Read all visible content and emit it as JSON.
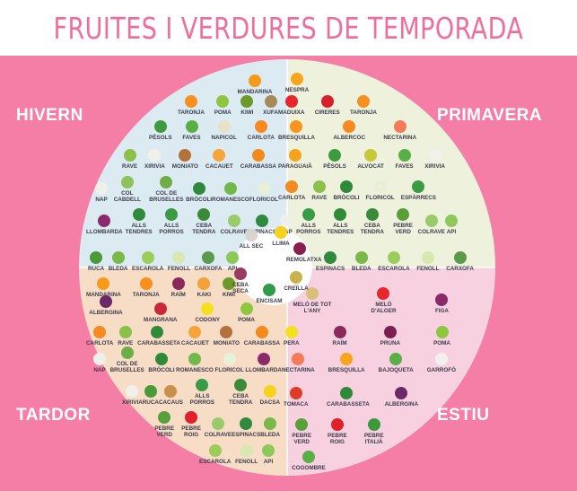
{
  "title": "FRUITES I VERDURES DE TEMPORADA",
  "seasons": {
    "winter": "HIVERN",
    "spring": "PRIMAVERA",
    "autumn": "TARDOR",
    "summer": "ESTIU"
  },
  "colors": {
    "background": "#f47ea6",
    "title": "#f06e9c",
    "winter": "#dcebf2",
    "spring": "#eef1dc",
    "autumn": "#f7dcc6",
    "summer": "#f8d1e1"
  },
  "center": [
    {
      "name": "ALL SEC",
      "color": "#d8d4d0"
    },
    {
      "name": "LLIMA",
      "color": "#f7d21c"
    },
    {
      "name": "REMOLATXA",
      "color": "#8a1f4f"
    },
    {
      "name": "CEBA SECA",
      "color": "#9a3a63"
    },
    {
      "name": "CREÏLLA",
      "color": "#c9b24a"
    },
    {
      "name": "ENCISAM",
      "color": "#2f9a4a"
    }
  ],
  "winter": [
    [
      {
        "name": "MANDARINA",
        "color": "#f59a1b"
      }
    ],
    [
      {
        "name": "TARONJA",
        "color": "#f7901e"
      },
      {
        "name": "POMA",
        "color": "#8ec63f"
      },
      {
        "name": "KIWI",
        "color": "#6b9a2a"
      },
      {
        "name": "XUFA",
        "color": "#a88a5a"
      }
    ],
    [
      {
        "name": "PÈSOLS",
        "color": "#3e9a3f"
      },
      {
        "name": "FAVES",
        "color": "#5aae46"
      },
      {
        "name": "NAPICOL",
        "color": "#e8e0c8"
      },
      {
        "name": "CARLOTA",
        "color": "#f48a21"
      }
    ],
    [
      {
        "name": "RAVE",
        "color": "#8bc04a"
      },
      {
        "name": "XIRIVIA",
        "color": "#f1f1ea"
      },
      {
        "name": "MONIATO",
        "color": "#b3713b"
      },
      {
        "name": "CACAUET",
        "color": "#f5a53a"
      },
      {
        "name": "CARABASSA",
        "color": "#f38a1c"
      }
    ],
    [
      {
        "name": "NAP",
        "color": "#f0f0ea"
      },
      {
        "name": "COL CABDELL",
        "color": "#8dc35a"
      },
      {
        "name": "COL DE BRUSELLES",
        "color": "#6eae46"
      },
      {
        "name": "BRÒCOLI",
        "color": "#2e8a3a"
      },
      {
        "name": "ROMANESCO",
        "color": "#73b84a"
      },
      {
        "name": "FLORICOL",
        "color": "#e9f0d8"
      }
    ],
    [
      {
        "name": "LLOMBARDA",
        "color": "#8a2a6a"
      },
      {
        "name": "ALLS TENDRES",
        "color": "#2f8a3a"
      },
      {
        "name": "ALLS PORROS",
        "color": "#3a9a45"
      },
      {
        "name": "CEBA TENDRA",
        "color": "#3b8a3a"
      },
      {
        "name": "COLRAVE",
        "color": "#9acb6a"
      },
      {
        "name": "ESPINACS",
        "color": "#2f8a40"
      }
    ],
    [
      {
        "name": "RUCA",
        "color": "#4a9a3a"
      },
      {
        "name": "BLEDA",
        "color": "#7ab84a"
      },
      {
        "name": "ESCAROLA",
        "color": "#9ccc5a"
      },
      {
        "name": "FENOLL",
        "color": "#d8e8b0"
      },
      {
        "name": "CARXOFA",
        "color": "#5a9a4a"
      },
      {
        "name": "API",
        "color": "#8cc85a"
      }
    ]
  ],
  "spring": [
    [
      {
        "name": "NESPRA",
        "color": "#f5a51e"
      }
    ],
    [
      {
        "name": "MADUIXA",
        "color": "#e8262d"
      },
      {
        "name": "CIRERES",
        "color": "#d8202a"
      },
      {
        "name": "TARONJA",
        "color": "#f7901e"
      }
    ],
    [
      {
        "name": "BRESQUILLA",
        "color": "#f7951e"
      },
      {
        "name": "ALBERCOC",
        "color": "#f58a20"
      },
      {
        "name": "NECTARINA",
        "color": "#f47a5a"
      }
    ],
    [
      {
        "name": "PARAGUAIÀ",
        "color": "#f5a31e"
      },
      {
        "name": "PÈSOLS",
        "color": "#3e9a3f"
      },
      {
        "name": "ALVOCAT",
        "color": "#c6c83a"
      },
      {
        "name": "FAVES",
        "color": "#5aae46"
      },
      {
        "name": "XIRIVIA",
        "color": "#f1f1ea"
      }
    ],
    [
      {
        "name": "CARLOTA",
        "color": "#f48a21"
      },
      {
        "name": "RAVE",
        "color": "#8bc04a"
      },
      {
        "name": "BRÒCOLI",
        "color": "#2e8a3a"
      },
      {
        "name": "FLORICOL",
        "color": "#e9f0d8"
      },
      {
        "name": "ESPÀRRECS",
        "color": "#3a9a45"
      }
    ],
    [
      {
        "name": "NAP",
        "color": "#f0f0ea"
      },
      {
        "name": "ALLS PORROS",
        "color": "#3a9a45"
      },
      {
        "name": "ALLS TENDRES",
        "color": "#2f8a3a"
      },
      {
        "name": "CEBA TENDRA",
        "color": "#3b8a3a"
      },
      {
        "name": "PEBRE VERD",
        "color": "#5aa03a"
      },
      {
        "name": "COLRAVE",
        "color": "#9acb6a"
      },
      {
        "name": "API",
        "color": "#8cc85a"
      }
    ],
    [
      {
        "name": "ESPINACS",
        "color": "#2f8a40"
      },
      {
        "name": "BLEDA",
        "color": "#7ab84a"
      },
      {
        "name": "ESCAROLA",
        "color": "#9ccc5a"
      },
      {
        "name": "FENOLL",
        "color": "#d8e8b0"
      },
      {
        "name": "CARXOFA",
        "color": "#5a9a4a"
      }
    ]
  ],
  "autumn": [
    [
      {
        "name": "MANDARINA",
        "color": "#f59a1b"
      },
      {
        "name": "TARONJA",
        "color": "#f7901e"
      },
      {
        "name": "RAÏM",
        "color": "#8a2a5a"
      },
      {
        "name": "KAKI",
        "color": "#f5a03a"
      },
      {
        "name": "KIWI",
        "color": "#6b9a2a"
      }
    ],
    [
      {
        "name": "ALBERGINA",
        "color": "#6a2a6a"
      }
    ],
    [
      {
        "name": "MANGRANA",
        "color": "#c8283a"
      },
      {
        "name": "CODONY",
        "color": "#f5e01e"
      },
      {
        "name": "POMA",
        "color": "#8ec63f"
      }
    ],
    [
      {
        "name": "CARLOTA",
        "color": "#f48a21"
      },
      {
        "name": "RAVE",
        "color": "#8bc04a"
      },
      {
        "name": "CARABASSETA",
        "color": "#2e8a3a"
      },
      {
        "name": "CACAUET",
        "color": "#f5a53a"
      },
      {
        "name": "MONIATO",
        "color": "#b3713b"
      },
      {
        "name": "CARABASSA",
        "color": "#f38a1c"
      }
    ],
    [
      {
        "name": "NAP",
        "color": "#f0f0ea"
      },
      {
        "name": "COL DE BRUSELLES",
        "color": "#6eae46"
      },
      {
        "name": "BRÒCOLI",
        "color": "#2e8a3a"
      },
      {
        "name": "ROMANESCO",
        "color": "#73b84a"
      },
      {
        "name": "FLORICOL",
        "color": "#e9f0d8"
      },
      {
        "name": "LLOMBARDA",
        "color": "#8a2a6a"
      }
    ],
    [
      {
        "name": "XIRIVIA",
        "color": "#f1f1ea"
      },
      {
        "name": "RUCA",
        "color": "#4a9a3a"
      },
      {
        "name": "CACAUS",
        "color": "#c8904a"
      },
      {
        "name": "ALLS PORROS",
        "color": "#3a9a45"
      },
      {
        "name": "CEBA TENDRA",
        "color": "#3b8a3a"
      },
      {
        "name": "DACSA",
        "color": "#f5d21e"
      }
    ],
    [
      {
        "name": "PEBRE VERD",
        "color": "#5aa03a"
      },
      {
        "name": "PEBRE ROIG",
        "color": "#e0202a"
      },
      {
        "name": "COLRAVE",
        "color": "#9acb6a"
      },
      {
        "name": "ESPINACS",
        "color": "#2f8a40"
      },
      {
        "name": "BLEDA",
        "color": "#7ab84a"
      }
    ],
    [
      {
        "name": "ESCAROLA",
        "color": "#9ccc5a"
      },
      {
        "name": "FENOLL",
        "color": "#d8e8b0"
      },
      {
        "name": "API",
        "color": "#8cc85a"
      }
    ]
  ],
  "summer": [
    [
      {
        "name": "MELÓ DE TOT L'ANY",
        "color": "#d8c07a"
      },
      {
        "name": "MELÓ D'ALGER",
        "color": "#e8262d"
      },
      {
        "name": "FIGA",
        "color": "#8a2a6a"
      }
    ],
    [
      {
        "name": "PERA",
        "color": "#f5e01e"
      },
      {
        "name": "RAÏM",
        "color": "#8a2a5a"
      },
      {
        "name": "PRUNA",
        "color": "#7a2050"
      },
      {
        "name": "POMA",
        "color": "#8ec63f"
      }
    ],
    [
      {
        "name": "NECTARINA",
        "color": "#f47a5a"
      },
      {
        "name": "BRESQUILLA",
        "color": "#f7a51e"
      },
      {
        "name": "BAJOQUETA",
        "color": "#5aae46"
      },
      {
        "name": "GARROFÓ",
        "color": "#f4f0f0"
      }
    ],
    [
      {
        "name": "TOMACA",
        "color": "#e03a2a"
      },
      {
        "name": "CARABASSETA",
        "color": "#2e8a3a"
      },
      {
        "name": "ALBERGINA",
        "color": "#6a2a6a"
      }
    ],
    [
      {
        "name": "PEBRE VERD",
        "color": "#5aa03a"
      },
      {
        "name": "PEBRE ROIG",
        "color": "#e0202a"
      },
      {
        "name": "PEBRE ITALIÀ",
        "color": "#3a9a3a"
      }
    ],
    [
      {
        "name": "COGOMBRE",
        "color": "#5aae46"
      }
    ]
  ]
}
